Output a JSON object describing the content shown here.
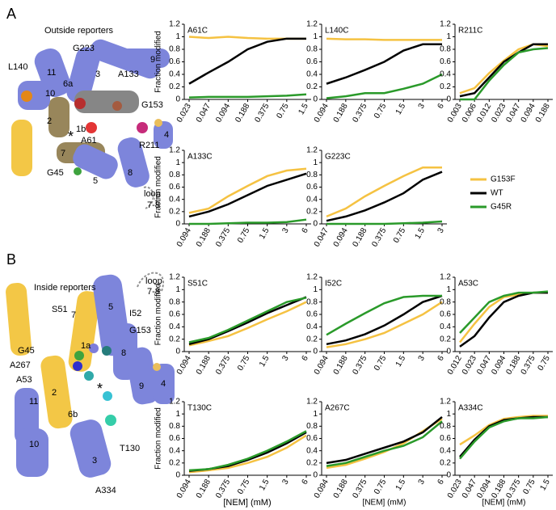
{
  "chart_data": [
    {
      "type": "line",
      "title": "A61C",
      "title_color": "#e02020",
      "y_label": "Fraction modified",
      "categories": [
        "0.023",
        "0.047",
        "0.094",
        "0.188",
        "0.375",
        "0.75",
        "1.5"
      ],
      "ylim": [
        0,
        1.2
      ],
      "yticks": [
        0,
        0.2,
        0.4,
        0.6,
        0.8,
        1,
        1.2
      ],
      "series": [
        {
          "name": "G153F",
          "color": "#f5c242",
          "values": [
            1.0,
            0.98,
            1.0,
            0.98,
            0.97,
            0.97,
            0.97
          ]
        },
        {
          "name": "WT",
          "color": "#000000",
          "values": [
            0.25,
            0.43,
            0.6,
            0.8,
            0.92,
            0.97,
            0.97
          ]
        },
        {
          "name": "G45R",
          "color": "#2a9a2a",
          "values": [
            0.03,
            0.04,
            0.04,
            0.04,
            0.05,
            0.06,
            0.08
          ]
        }
      ]
    },
    {
      "type": "line",
      "title": "L140C",
      "title_color": "#e07b00",
      "categories": [
        "0.094",
        "0.188",
        "0.375",
        "0.75",
        "1.5",
        "3",
        "6"
      ],
      "ylim": [
        0,
        1.2
      ],
      "yticks": [
        0,
        0.2,
        0.4,
        0.6,
        0.8,
        1,
        1.2
      ],
      "series": [
        {
          "name": "G153F",
          "color": "#f5c242",
          "values": [
            0.97,
            0.96,
            0.96,
            0.95,
            0.95,
            0.95,
            0.95
          ]
        },
        {
          "name": "WT",
          "color": "#000000",
          "values": [
            0.25,
            0.35,
            0.47,
            0.6,
            0.78,
            0.88,
            0.88
          ]
        },
        {
          "name": "G45R",
          "color": "#2a9a2a",
          "values": [
            0.02,
            0.05,
            0.1,
            0.1,
            0.17,
            0.25,
            0.4
          ]
        }
      ]
    },
    {
      "type": "line",
      "title": "R211C",
      "title_color": "#c0156c",
      "categories": [
        "0.003",
        "0.006",
        "0.012",
        "0.023",
        "0.047",
        "0.094",
        "0.188"
      ],
      "ylim": [
        0,
        1.2
      ],
      "yticks": [
        0,
        0.2,
        0.4,
        0.6,
        0.8,
        1,
        1.2
      ],
      "series": [
        {
          "name": "G153F",
          "color": "#f5c242",
          "values": [
            0.1,
            0.18,
            0.42,
            0.62,
            0.8,
            0.88,
            0.85
          ]
        },
        {
          "name": "WT",
          "color": "#000000",
          "values": [
            0.05,
            0.1,
            0.35,
            0.6,
            0.75,
            0.88,
            0.88
          ]
        },
        {
          "name": "G45R",
          "color": "#2a9a2a",
          "values": [
            0.0,
            0.0,
            0.3,
            0.55,
            0.75,
            0.8,
            0.82
          ]
        }
      ]
    },
    {
      "type": "line",
      "title": "A133C",
      "title_color": "#9b4a2c",
      "y_label": "Fraction modified",
      "categories": [
        "0.094",
        "0.188",
        "0.375",
        "0.75",
        "1.5",
        "3",
        "6"
      ],
      "ylim": [
        0,
        1.2
      ],
      "yticks": [
        0,
        0.2,
        0.4,
        0.6,
        0.8,
        1,
        1.2
      ],
      "series": [
        {
          "name": "G153F",
          "color": "#f5c242",
          "values": [
            0.18,
            0.25,
            0.45,
            0.62,
            0.78,
            0.87,
            0.9
          ]
        },
        {
          "name": "WT",
          "color": "#000000",
          "values": [
            0.12,
            0.2,
            0.32,
            0.47,
            0.62,
            0.72,
            0.82
          ]
        },
        {
          "name": "G45R",
          "color": "#2a9a2a",
          "values": [
            0.0,
            0.0,
            0.01,
            0.02,
            0.02,
            0.03,
            0.07
          ]
        }
      ]
    },
    {
      "type": "line",
      "title": "G223C",
      "title_color": "#b01818",
      "categories": [
        "0.047",
        "0.094",
        "0.188",
        "0.375",
        "0.75",
        "1.5",
        "3"
      ],
      "ylim": [
        0,
        1.2
      ],
      "yticks": [
        0,
        0.2,
        0.4,
        0.6,
        0.8,
        1,
        1.2
      ],
      "series": [
        {
          "name": "G153F",
          "color": "#f5c242",
          "values": [
            0.12,
            0.25,
            0.45,
            0.62,
            0.78,
            0.92,
            0.92
          ]
        },
        {
          "name": "WT",
          "color": "#000000",
          "values": [
            0.05,
            0.12,
            0.22,
            0.35,
            0.5,
            0.72,
            0.85
          ]
        },
        {
          "name": "G45R",
          "color": "#2a9a2a",
          "values": [
            0.0,
            0.0,
            0.0,
            0.0,
            0.01,
            0.02,
            0.04
          ]
        }
      ]
    },
    {
      "type": "line",
      "title": "S51C",
      "title_color": "#7070d8",
      "y_label": "Fraction modified",
      "categories": [
        "0.094",
        "0.188",
        "0.375",
        "0.75",
        "1.5",
        "3",
        "6"
      ],
      "ylim": [
        0,
        1.2
      ],
      "yticks": [
        0,
        0.2,
        0.4,
        0.6,
        0.8,
        1,
        1.2
      ],
      "series": [
        {
          "name": "G153F",
          "color": "#f5c242",
          "values": [
            0.1,
            0.17,
            0.25,
            0.38,
            0.52,
            0.65,
            0.8
          ]
        },
        {
          "name": "WT",
          "color": "#000000",
          "values": [
            0.12,
            0.2,
            0.33,
            0.47,
            0.62,
            0.75,
            0.88
          ]
        },
        {
          "name": "G45R",
          "color": "#2a9a2a",
          "values": [
            0.15,
            0.22,
            0.35,
            0.5,
            0.65,
            0.8,
            0.87
          ]
        }
      ]
    },
    {
      "type": "line",
      "title": "I52C",
      "title_color": "#0f6e6e",
      "categories": [
        "0.094",
        "0.188",
        "0.375",
        "0.75",
        "1.5",
        "3",
        "6"
      ],
      "ylim": [
        0,
        1.2
      ],
      "yticks": [
        0,
        0.2,
        0.4,
        0.6,
        0.8,
        1,
        1.2
      ],
      "series": [
        {
          "name": "G153F",
          "color": "#f5c242",
          "values": [
            0.07,
            0.12,
            0.2,
            0.3,
            0.45,
            0.6,
            0.8
          ]
        },
        {
          "name": "WT",
          "color": "#000000",
          "values": [
            0.12,
            0.18,
            0.28,
            0.42,
            0.6,
            0.8,
            0.9
          ]
        },
        {
          "name": "G45R",
          "color": "#2a9a2a",
          "values": [
            0.27,
            0.45,
            0.62,
            0.78,
            0.88,
            0.9,
            0.9
          ]
        }
      ]
    },
    {
      "type": "line",
      "title": "A53C",
      "title_color": "#1aa0a0",
      "categories": [
        "0.012",
        "0.023",
        "0.047",
        "0.094",
        "0.188",
        "0.375",
        "0.75"
      ],
      "ylim": [
        0,
        1.2
      ],
      "yticks": [
        0,
        0.2,
        0.4,
        0.6,
        0.8,
        1,
        1.2
      ],
      "series": [
        {
          "name": "G153F",
          "color": "#f5c242",
          "values": [
            0.15,
            0.45,
            0.72,
            0.88,
            0.92,
            0.95,
            0.95
          ]
        },
        {
          "name": "WT",
          "color": "#000000",
          "values": [
            0.08,
            0.25,
            0.55,
            0.8,
            0.9,
            0.95,
            0.95
          ]
        },
        {
          "name": "G45R",
          "color": "#2a9a2a",
          "values": [
            0.3,
            0.55,
            0.8,
            0.9,
            0.95,
            0.95,
            0.97
          ]
        }
      ]
    },
    {
      "type": "line",
      "title": "T130C",
      "title_color": "#22bcd0",
      "y_label": "Fraction modified",
      "categories": [
        "0.094",
        "0.188",
        "0.375",
        "0.75",
        "1.5",
        "3",
        "6"
      ],
      "ylim": [
        0,
        1.2
      ],
      "yticks": [
        0,
        0.2,
        0.4,
        0.6,
        0.8,
        1,
        1.2
      ],
      "series": [
        {
          "name": "G153F",
          "color": "#f5c242",
          "values": [
            0.05,
            0.08,
            0.12,
            0.2,
            0.3,
            0.45,
            0.65
          ]
        },
        {
          "name": "WT",
          "color": "#000000",
          "values": [
            0.07,
            0.1,
            0.15,
            0.25,
            0.37,
            0.52,
            0.7
          ]
        },
        {
          "name": "G45R",
          "color": "#2a9a2a",
          "values": [
            0.08,
            0.1,
            0.17,
            0.27,
            0.4,
            0.55,
            0.72
          ]
        }
      ]
    },
    {
      "type": "line",
      "title": "A267C",
      "title_color": "#1a1ac8",
      "x_label": "[NEM] (mM)",
      "categories": [
        "0.094",
        "0.188",
        "0.375",
        "0.75",
        "1.5",
        "3",
        "6"
      ],
      "ylim": [
        0,
        1.2
      ],
      "yticks": [
        0,
        0.2,
        0.4,
        0.6,
        0.8,
        1,
        1.2
      ],
      "series": [
        {
          "name": "G153F",
          "color": "#f5c242",
          "values": [
            0.12,
            0.17,
            0.27,
            0.38,
            0.52,
            0.72,
            0.92
          ]
        },
        {
          "name": "WT",
          "color": "#000000",
          "values": [
            0.2,
            0.25,
            0.35,
            0.45,
            0.55,
            0.7,
            0.95
          ]
        },
        {
          "name": "G45R",
          "color": "#2a9a2a",
          "values": [
            0.15,
            0.2,
            0.3,
            0.4,
            0.48,
            0.62,
            0.88
          ]
        }
      ]
    },
    {
      "type": "line",
      "title": "A334C",
      "title_color": "#20c8a0",
      "x_label": "[NEM] (mM)",
      "categories": [
        "0.023",
        "0.047",
        "0.094",
        "0.188",
        "0.375",
        "0.75",
        "1.5"
      ],
      "ylim": [
        0,
        1.2
      ],
      "yticks": [
        0,
        0.2,
        0.4,
        0.6,
        0.8,
        1,
        1.2
      ],
      "series": [
        {
          "name": "G153F",
          "color": "#f5c242",
          "values": [
            0.5,
            0.65,
            0.82,
            0.92,
            0.95,
            0.97,
            0.97
          ]
        },
        {
          "name": "WT",
          "color": "#000000",
          "values": [
            0.3,
            0.58,
            0.8,
            0.9,
            0.93,
            0.95,
            0.95
          ]
        },
        {
          "name": "G45R",
          "color": "#2a9a2a",
          "values": [
            0.27,
            0.55,
            0.78,
            0.88,
            0.93,
            0.93,
            0.95
          ]
        }
      ]
    }
  ],
  "x_label_first_column": "[NEM] (mM)",
  "structure_a": {
    "letter": "A",
    "title": "Outside reporters",
    "labels": [
      {
        "text": "L140",
        "color": "#e07b00"
      },
      {
        "text": "G223",
        "color": "#b01818"
      },
      {
        "text": "A133",
        "color": "#9b4a2c"
      },
      {
        "text": "A61",
        "color": "#e02020"
      },
      {
        "text": "G153",
        "color": "#e8b84a"
      },
      {
        "text": "R211",
        "color": "#c0156c"
      },
      {
        "text": "G45",
        "color": "#2a9a2a"
      },
      {
        "text": "loop",
        "color": "#888888"
      },
      {
        "text": "7-8",
        "color": "#888888"
      },
      {
        "text": "11",
        "color": "#000000"
      },
      {
        "text": "10",
        "color": "#000000"
      },
      {
        "text": "6a",
        "color": "#000000"
      },
      {
        "text": "3",
        "color": "#000000"
      },
      {
        "text": "9",
        "color": "#000000"
      },
      {
        "text": "2",
        "color": "#000000"
      },
      {
        "text": "1b",
        "color": "#000000"
      },
      {
        "text": "7",
        "color": "#000000"
      },
      {
        "text": "4",
        "color": "#000000"
      },
      {
        "text": "5",
        "color": "#000000"
      },
      {
        "text": "8",
        "color": "#000000"
      },
      {
        "text": "*",
        "color": "#000000"
      }
    ]
  },
  "structure_b": {
    "letter": "B",
    "title": "Inside reporters",
    "labels": [
      {
        "text": "S51",
        "color": "#7070d8"
      },
      {
        "text": "I52",
        "color": "#0f6e6e"
      },
      {
        "text": "G153",
        "color": "#e8b84a"
      },
      {
        "text": "G45",
        "color": "#2a9a2a"
      },
      {
        "text": "A267",
        "color": "#1a1ac8"
      },
      {
        "text": "A53",
        "color": "#1aa0a0"
      },
      {
        "text": "T130",
        "color": "#22bcd0"
      },
      {
        "text": "A334",
        "color": "#20c8a0"
      },
      {
        "text": "loop",
        "color": "#888888"
      },
      {
        "text": "7-8",
        "color": "#888888"
      },
      {
        "text": "7",
        "color": "#000000"
      },
      {
        "text": "5",
        "color": "#000000"
      },
      {
        "text": "1a",
        "color": "#000000"
      },
      {
        "text": "8",
        "color": "#000000"
      },
      {
        "text": "2",
        "color": "#000000"
      },
      {
        "text": "11",
        "color": "#000000"
      },
      {
        "text": "6b",
        "color": "#000000"
      },
      {
        "text": "9",
        "color": "#000000"
      },
      {
        "text": "4",
        "color": "#000000"
      },
      {
        "text": "10",
        "color": "#000000"
      },
      {
        "text": "3",
        "color": "#000000"
      },
      {
        "text": "*",
        "color": "#000000"
      }
    ]
  }
}
